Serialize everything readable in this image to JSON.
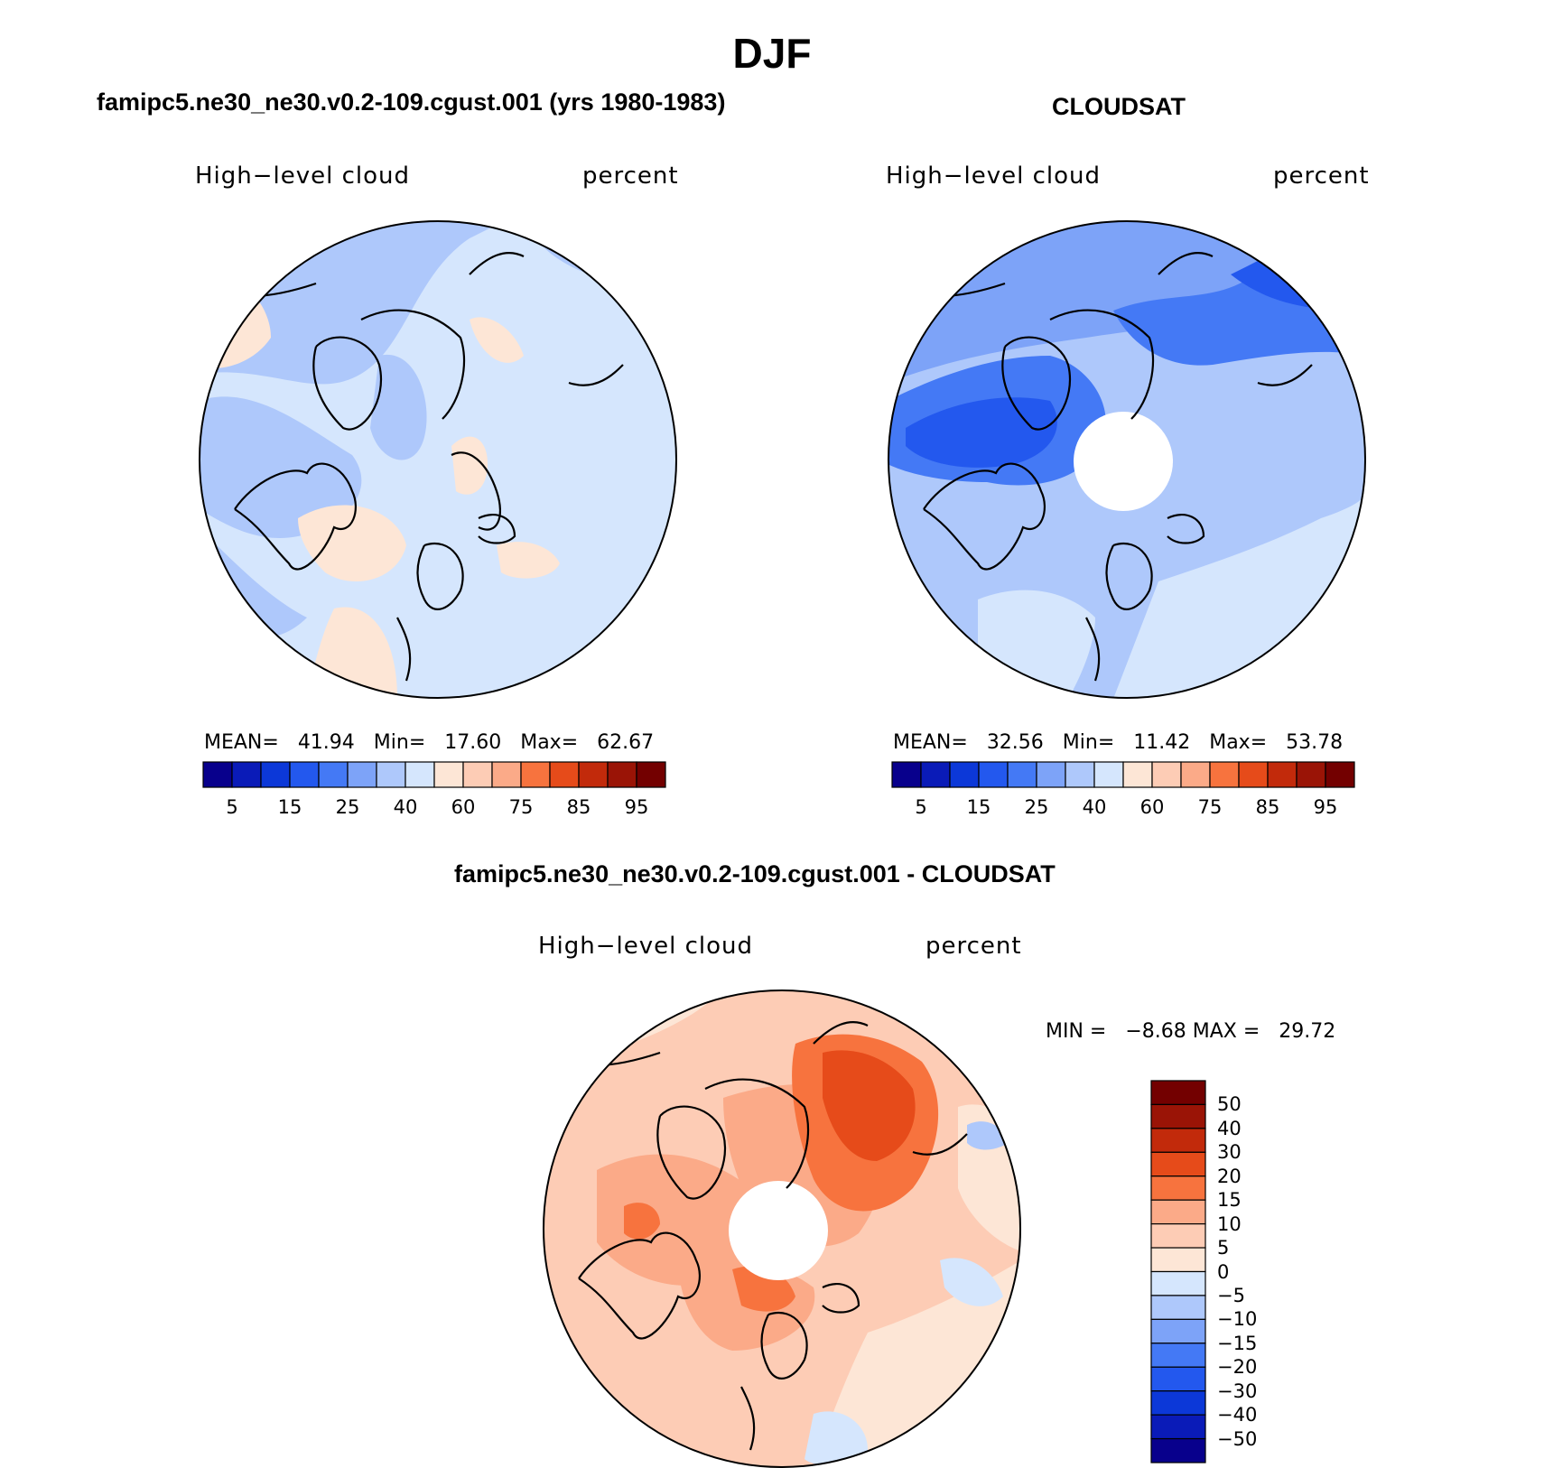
{
  "figure": {
    "title": "DJF"
  },
  "panels": [
    {
      "id": "model",
      "title": "famipc5.ne30_ne30.v0.2-109.cgust.001 (yrs 1980-1983)",
      "left_label": "High−level cloud",
      "right_label": "percent",
      "stats": {
        "mean_label": "MEAN=",
        "mean": "41.94",
        "min_label": "Min=",
        "min": "17.60",
        "max_label": "Max=",
        "max": "62.67"
      },
      "colorbar": {
        "colors": [
          "#08008c",
          "#0a1bb8",
          "#0c38d8",
          "#2358ee",
          "#4479f5",
          "#7da3f8",
          "#aec8fb",
          "#d5e6fd",
          "#fde6d6",
          "#fdccb5",
          "#fbaa88",
          "#f7733e",
          "#e64b1a",
          "#c22a0b",
          "#9a1406",
          "#730000"
        ],
        "labels": [
          "5",
          "15",
          "25",
          "40",
          "60",
          "75",
          "85",
          "95"
        ]
      }
    },
    {
      "id": "obs",
      "title": "CLOUDSAT",
      "left_label": "High−level cloud",
      "right_label": "percent",
      "stats": {
        "mean_label": "MEAN=",
        "mean": "32.56",
        "min_label": "Min=",
        "min": "11.42",
        "max_label": "Max=",
        "max": "53.78"
      },
      "colorbar": {
        "colors": [
          "#08008c",
          "#0a1bb8",
          "#0c38d8",
          "#2358ee",
          "#4479f5",
          "#7da3f8",
          "#aec8fb",
          "#d5e6fd",
          "#fde6d6",
          "#fdccb5",
          "#fbaa88",
          "#f7733e",
          "#e64b1a",
          "#c22a0b",
          "#9a1406",
          "#730000"
        ],
        "labels": [
          "5",
          "15",
          "25",
          "40",
          "60",
          "75",
          "85",
          "95"
        ]
      }
    },
    {
      "id": "diff",
      "title": "famipc5.ne30_ne30.v0.2-109.cgust.001 - CLOUDSAT",
      "left_label": "High−level cloud",
      "right_label": "percent",
      "stats": {
        "min_label": "MIN =",
        "min": "−8.68",
        "max_label": "MAX =",
        "max": "29.72"
      },
      "colorbar": {
        "colors": [
          "#730000",
          "#9a1406",
          "#c22a0b",
          "#e64b1a",
          "#f7733e",
          "#fbaa88",
          "#fdccb5",
          "#fde6d6",
          "#d5e6fd",
          "#aec8fb",
          "#7da3f8",
          "#4479f5",
          "#2358ee",
          "#0c38d8",
          "#0a1bb8",
          "#08008c"
        ],
        "labels": [
          "50",
          "40",
          "30",
          "20",
          "15",
          "10",
          "5",
          "0",
          "−5",
          "−10",
          "−15",
          "−20",
          "−30",
          "−40",
          "−50"
        ]
      }
    }
  ]
}
